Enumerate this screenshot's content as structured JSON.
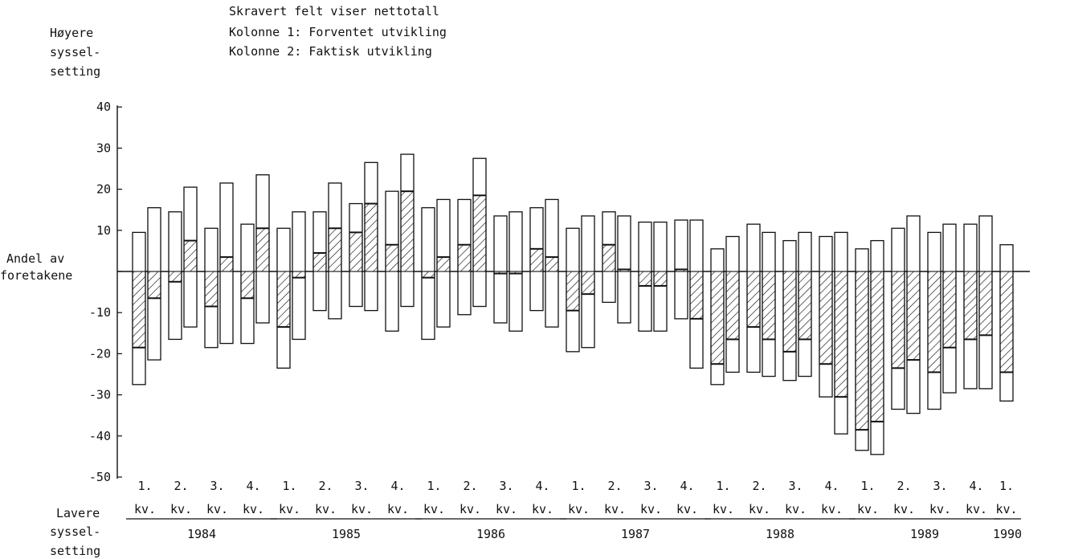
{
  "legend": {
    "line1": "Skravert felt viser nettotall",
    "line2": "Kolonne 1:  Forventet utvikling",
    "line3": "Kolonne 2:  Faktisk utvikling"
  },
  "labels": {
    "y_top": [
      "Høyere",
      "syssel-",
      "setting"
    ],
    "y_mid": [
      "Andel av",
      "foretakene"
    ],
    "y_bottom": [
      "Lavere",
      "syssel-",
      "setting"
    ]
  },
  "colors": {
    "ink": "#111111",
    "background": "#ffffff"
  },
  "chart_data": {
    "type": "bar",
    "description_of_encoding": "Each bar spans from the negative share (lower) to the positive share (upper); hatched segment shows the net value.",
    "ylim": [
      -50,
      40
    ],
    "yticks": [
      40,
      30,
      20,
      10,
      0,
      -10,
      -20,
      -30,
      -40,
      -50
    ],
    "ytick_labels": [
      "40",
      "30",
      "20",
      "10",
      "",
      "-10",
      "-20",
      "-30",
      "-40",
      "-50"
    ],
    "grid": false,
    "series": [
      {
        "name": "Kolonne 1:  Forventet utvikling"
      },
      {
        "name": "Kolonne 2:  Faktisk utvikling"
      }
    ],
    "years": [
      {
        "label": "1984",
        "quarters": [
          {
            "q": "1.",
            "kv": "kv.",
            "bars": [
              {
                "up": 9.5,
                "down": -27.5,
                "net": -18.5
              },
              {
                "up": 15.5,
                "down": -21.5,
                "net": -6.5
              }
            ]
          },
          {
            "q": "2.",
            "kv": "kv.",
            "bars": [
              {
                "up": 14.5,
                "down": -16.5,
                "net": -2.5
              },
              {
                "up": 20.5,
                "down": -13.5,
                "net": 7.5
              }
            ]
          },
          {
            "q": "3.",
            "kv": "kv.",
            "bars": [
              {
                "up": 10.5,
                "down": -18.5,
                "net": -8.5
              },
              {
                "up": 21.5,
                "down": -17.5,
                "net": 3.5
              }
            ]
          },
          {
            "q": "4.",
            "kv": "kv.",
            "bars": [
              {
                "up": 11.5,
                "down": -17.5,
                "net": -6.5
              },
              {
                "up": 23.5,
                "down": -12.5,
                "net": 10.5
              }
            ]
          }
        ]
      },
      {
        "label": "1985",
        "quarters": [
          {
            "q": "1.",
            "kv": "kv.",
            "bars": [
              {
                "up": 10.5,
                "down": -23.5,
                "net": -13.5
              },
              {
                "up": 14.5,
                "down": -16.5,
                "net": -1.5
              }
            ]
          },
          {
            "q": "2.",
            "kv": "kv.",
            "bars": [
              {
                "up": 14.5,
                "down": -9.5,
                "net": 4.5
              },
              {
                "up": 21.5,
                "down": -11.5,
                "net": 10.5
              }
            ]
          },
          {
            "q": "3.",
            "kv": "kv.",
            "bars": [
              {
                "up": 16.5,
                "down": -8.5,
                "net": 9.5
              },
              {
                "up": 26.5,
                "down": -9.5,
                "net": 16.5
              }
            ]
          },
          {
            "q": "4.",
            "kv": "kv.",
            "bars": [
              {
                "up": 19.5,
                "down": -14.5,
                "net": 6.5
              },
              {
                "up": 28.5,
                "down": -8.5,
                "net": 19.5
              }
            ]
          }
        ]
      },
      {
        "label": "1986",
        "quarters": [
          {
            "q": "1.",
            "kv": "kv.",
            "bars": [
              {
                "up": 15.5,
                "down": -16.5,
                "net": -1.5
              },
              {
                "up": 17.5,
                "down": -13.5,
                "net": 3.5
              }
            ]
          },
          {
            "q": "2.",
            "kv": "kv.",
            "bars": [
              {
                "up": 17.5,
                "down": -10.5,
                "net": 6.5
              },
              {
                "up": 27.5,
                "down": -8.5,
                "net": 18.5
              }
            ]
          },
          {
            "q": "3.",
            "kv": "kv.",
            "bars": [
              {
                "up": 13.5,
                "down": -12.5,
                "net": -0.5
              },
              {
                "up": 14.5,
                "down": -14.5,
                "net": -0.5
              }
            ]
          },
          {
            "q": "4.",
            "kv": "kv.",
            "bars": [
              {
                "up": 15.5,
                "down": -9.5,
                "net": 5.5
              },
              {
                "up": 17.5,
                "down": -13.5,
                "net": 3.5
              }
            ]
          }
        ]
      },
      {
        "label": "1987",
        "quarters": [
          {
            "q": "1.",
            "kv": "kv.",
            "bars": [
              {
                "up": 10.5,
                "down": -19.5,
                "net": -9.5
              },
              {
                "up": 13.5,
                "down": -18.5,
                "net": -5.5
              }
            ]
          },
          {
            "q": "2.",
            "kv": "kv.",
            "bars": [
              {
                "up": 14.5,
                "down": -7.5,
                "net": 6.5
              },
              {
                "up": 13.5,
                "down": -12.5,
                "net": 0.5
              }
            ]
          },
          {
            "q": "3.",
            "kv": "kv.",
            "bars": [
              {
                "up": 12.0,
                "down": -14.5,
                "net": -3.5
              },
              {
                "up": 12.0,
                "down": -14.5,
                "net": -3.5
              }
            ]
          },
          {
            "q": "4.",
            "kv": "kv.",
            "bars": [
              {
                "up": 12.5,
                "down": -11.5,
                "net": 0.5
              },
              {
                "up": 12.5,
                "down": -23.5,
                "net": -11.5
              }
            ]
          }
        ]
      },
      {
        "label": "1988",
        "quarters": [
          {
            "q": "1.",
            "kv": "kv.",
            "bars": [
              {
                "up": 5.5,
                "down": -27.5,
                "net": -22.5
              },
              {
                "up": 8.5,
                "down": -24.5,
                "net": -16.5
              }
            ]
          },
          {
            "q": "2.",
            "kv": "kv.",
            "bars": [
              {
                "up": 11.5,
                "down": -24.5,
                "net": -13.5
              },
              {
                "up": 9.5,
                "down": -25.5,
                "net": -16.5
              }
            ]
          },
          {
            "q": "3.",
            "kv": "kv.",
            "bars": [
              {
                "up": 7.5,
                "down": -26.5,
                "net": -19.5
              },
              {
                "up": 9.5,
                "down": -25.5,
                "net": -16.5
              }
            ]
          },
          {
            "q": "4.",
            "kv": "kv.",
            "bars": [
              {
                "up": 8.5,
                "down": -30.5,
                "net": -22.5
              },
              {
                "up": 9.5,
                "down": -39.5,
                "net": -30.5
              }
            ]
          }
        ]
      },
      {
        "label": "1989",
        "quarters": [
          {
            "q": "1.",
            "kv": "kv.",
            "bars": [
              {
                "up": 5.5,
                "down": -43.5,
                "net": -38.5
              },
              {
                "up": 7.5,
                "down": -44.5,
                "net": -36.5
              }
            ]
          },
          {
            "q": "2.",
            "kv": "kv.",
            "bars": [
              {
                "up": 10.5,
                "down": -33.5,
                "net": -23.5
              },
              {
                "up": 13.5,
                "down": -34.5,
                "net": -21.5
              }
            ]
          },
          {
            "q": "3.",
            "kv": "kv.",
            "bars": [
              {
                "up": 9.5,
                "down": -33.5,
                "net": -24.5
              },
              {
                "up": 11.5,
                "down": -29.5,
                "net": -18.5
              }
            ]
          },
          {
            "q": "4.",
            "kv": "kv.",
            "bars": [
              {
                "up": 11.5,
                "down": -28.5,
                "net": -16.5
              },
              {
                "up": 13.5,
                "down": -28.5,
                "net": -15.5
              }
            ]
          }
        ]
      },
      {
        "label": "1990",
        "quarters": [
          {
            "q": "1.",
            "kv": "kv.",
            "bars": [
              {
                "up": 6.5,
                "down": -31.5,
                "net": -24.5
              }
            ]
          }
        ]
      }
    ]
  }
}
